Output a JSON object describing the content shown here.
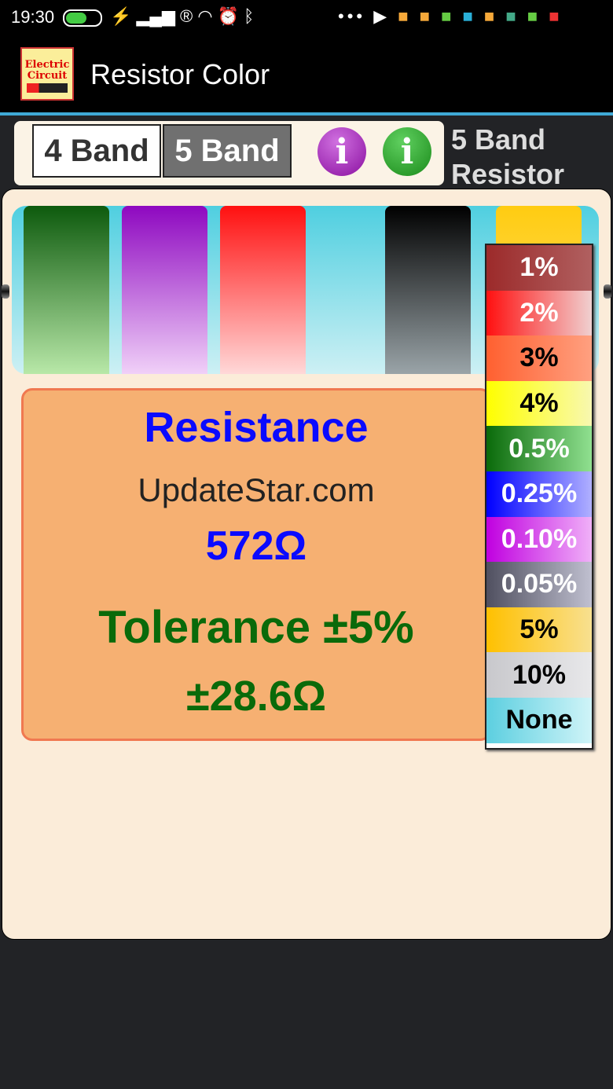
{
  "status_bar": {
    "time": "19:30",
    "icons": [
      "battery-icon",
      "charging-icon",
      "signal-icon",
      "registered-icon",
      "wifi-icon",
      "alarm-icon",
      "bluetooth-icon",
      "more-icon",
      "play-store-icon",
      "app-icon",
      "app-icon",
      "battery-app-icon",
      "compass-icon",
      "app-icon",
      "maps-icon",
      "battery-app-icon",
      "youtube-icon"
    ]
  },
  "app_bar": {
    "title": "Resistor Color",
    "logo_text": "Electric Circuit"
  },
  "toolbar": {
    "band4_label": "4 Band",
    "band5_label": "5 Band",
    "info1": "i",
    "info2": "i",
    "mode_line1": "5 Band",
    "mode_line2": "Resistor",
    "selected": "5 Band"
  },
  "bands": [
    {
      "color": "green",
      "hex": "#0d5a0d"
    },
    {
      "color": "violet",
      "hex": "#8e08c0"
    },
    {
      "color": "red",
      "hex": "#ff1010"
    },
    {
      "color": "black",
      "hex": "#000000"
    },
    {
      "color": "gold",
      "hex": "#ffcc11"
    }
  ],
  "result": {
    "heading": "Resistance",
    "value": "572Ω",
    "tolerance": "Tolerance ±5%",
    "deviation": "±28.6Ω",
    "watermark": "UpdateStar.com"
  },
  "tolerance_menu": [
    {
      "label": "1%",
      "bg": "linear-gradient(90deg,#9c2a2a,#b06060)",
      "fg": "#fff"
    },
    {
      "label": "2%",
      "bg": "linear-gradient(90deg,#ff1010,#f0d0d0)",
      "fg": "#fff"
    },
    {
      "label": "3%",
      "bg": "linear-gradient(90deg,#ff6030,#ffa080)",
      "fg": "#000"
    },
    {
      "label": "4%",
      "bg": "linear-gradient(90deg,#ffff00,#f8f8b0)",
      "fg": "#000"
    },
    {
      "label": "0.5%",
      "bg": "linear-gradient(90deg,#0a6a0a,#90e090)",
      "fg": "#fff"
    },
    {
      "label": "0.25%",
      "bg": "linear-gradient(90deg,#0000ff,#b0b0ff)",
      "fg": "#fff"
    },
    {
      "label": "0.10%",
      "bg": "linear-gradient(90deg,#c000e0,#f0b0f8)",
      "fg": "#fff"
    },
    {
      "label": "0.05%",
      "bg": "linear-gradient(90deg,#505060,#c0c0d0)",
      "fg": "#fff"
    },
    {
      "label": "5%",
      "bg": "linear-gradient(90deg,#ffc000,#f8e090)",
      "fg": "#000"
    },
    {
      "label": "10%",
      "bg": "linear-gradient(90deg,#c8c8cc,#e8e8ea)",
      "fg": "#000"
    },
    {
      "label": "None",
      "bg": "linear-gradient(90deg,#5ccfe0,#d0f4f8)",
      "fg": "#000"
    }
  ]
}
